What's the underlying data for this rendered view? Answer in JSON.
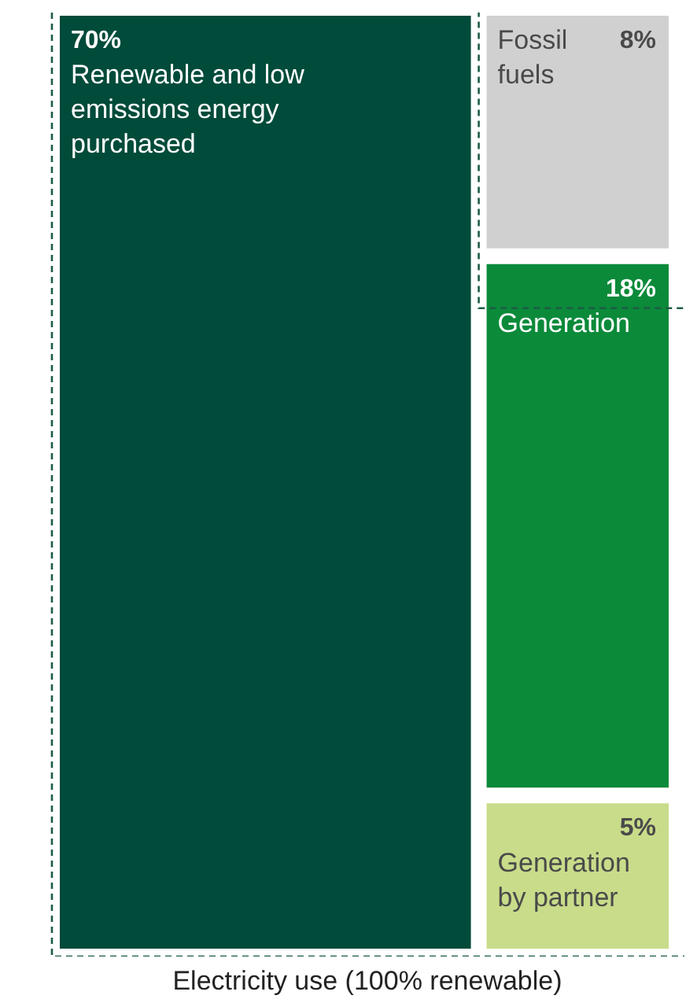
{
  "chart_data": {
    "type": "other",
    "xlabel": "Electricity use (100% renewable)",
    "categories": [
      "Renewable and low emissions energy purchased",
      "Fossil fuels",
      "Generation",
      "Generation by partner"
    ],
    "values": [
      70,
      8,
      18,
      5
    ],
    "value_labels": [
      "70%",
      "8%",
      "18%",
      "5%"
    ],
    "colors": [
      "#004b3a",
      "#d0d0d0",
      "#0b8a3a",
      "#c8dc8a"
    ]
  }
}
